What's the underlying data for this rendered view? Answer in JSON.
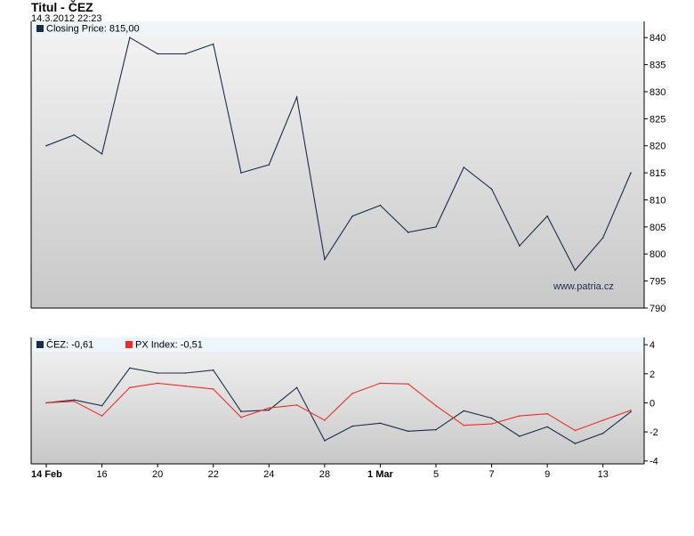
{
  "title": "Titul - ČEZ",
  "timestamp": "14.3.2012 22:23",
  "watermark": "www.patria.cz",
  "chart_data": [
    {
      "type": "line",
      "legend_placement": "top-left",
      "grid": false,
      "legend": [
        {
          "marker_color": "#1c2a4a",
          "label": "Closing Price: 815,00"
        }
      ],
      "x_tick_labels": [
        "14 Feb",
        "16",
        "20",
        "22",
        "24",
        "28",
        "1 Mar",
        "5",
        "7",
        "9",
        "13"
      ],
      "x": [
        "14 Feb",
        "15 Feb",
        "16 Feb",
        "17 Feb",
        "20 Feb",
        "21 Feb",
        "22 Feb",
        "23 Feb",
        "24 Feb",
        "27 Feb",
        "28 Feb",
        "29 Feb",
        "1 Mar",
        "2 Mar",
        "5 Mar",
        "6 Mar",
        "7 Mar",
        "8 Mar",
        "9 Mar",
        "12 Mar",
        "13 Mar",
        "14 Mar"
      ],
      "ylim": [
        790,
        843
      ],
      "y_ticks": [
        790,
        795,
        800,
        805,
        810,
        815,
        820,
        825,
        830,
        835,
        840
      ],
      "series": [
        {
          "color": "#1c2a4a",
          "values": [
            820,
            822,
            818.5,
            840,
            837,
            837,
            838.8,
            815,
            816.5,
            829,
            799,
            807,
            809,
            804,
            805,
            816,
            812,
            801.5,
            807,
            797,
            803,
            815
          ]
        }
      ]
    },
    {
      "type": "line",
      "legend_placement": "top-left",
      "grid": false,
      "legend": [
        {
          "marker_color": "#1c2a4a",
          "label": "ČEZ: -0,61"
        },
        {
          "marker_color": "#e8302a",
          "label": "PX Index: -0,51"
        }
      ],
      "ylim": [
        -4.2,
        4.5
      ],
      "y_ticks": [
        4,
        2,
        0,
        -2,
        -4
      ],
      "y_tick_labels": [
        "4",
        "2",
        "0",
        "-2",
        "-4"
      ],
      "series": [
        {
          "color": "#1c2a4a",
          "values": [
            0,
            0.2,
            -0.2,
            2.4,
            2.05,
            2.05,
            2.25,
            -0.6,
            -0.5,
            1.05,
            -2.6,
            -1.6,
            -1.4,
            -1.95,
            -1.85,
            -0.55,
            -1.05,
            -2.3,
            -1.65,
            -2.8,
            -2.1,
            -0.61
          ]
        },
        {
          "color": "#e8302a",
          "values": [
            0,
            0.1,
            -0.9,
            1.05,
            1.35,
            1.15,
            0.95,
            -1.0,
            -0.35,
            -0.15,
            -1.2,
            0.65,
            1.35,
            1.3,
            -0.2,
            -1.55,
            -1.45,
            -0.9,
            -0.75,
            -1.9,
            -1.2,
            -0.51
          ]
        }
      ]
    }
  ]
}
